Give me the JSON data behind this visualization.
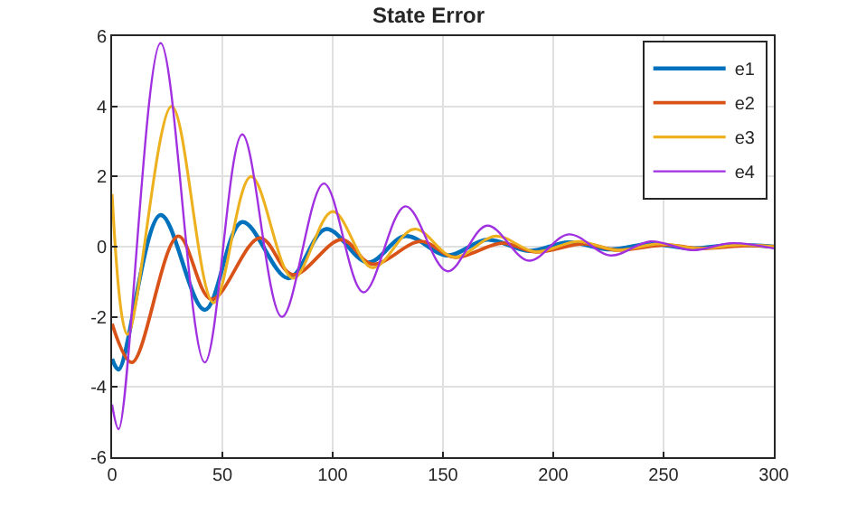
{
  "chart_data": {
    "type": "line",
    "title": "State Error",
    "xlim": [
      0,
      300
    ],
    "ylim": [
      -6,
      6
    ],
    "xticks": [
      0,
      50,
      100,
      150,
      200,
      250,
      300
    ],
    "yticks": [
      -6,
      -4,
      -2,
      0,
      2,
      4,
      6
    ],
    "grid": true,
    "legend": "top right",
    "series": [
      {
        "name": "e1",
        "color": "#0072bd",
        "x": [
          0,
          3,
          22,
          42,
          59,
          80,
          97,
          116,
          133,
          152,
          170,
          189,
          207,
          226,
          244,
          263,
          281,
          300
        ],
        "values": [
          -3.2,
          -3.5,
          0.9,
          -1.8,
          0.7,
          -0.9,
          0.5,
          -0.45,
          0.3,
          -0.25,
          0.2,
          -0.12,
          0.12,
          -0.08,
          0.08,
          -0.05,
          0.05,
          0
        ]
      },
      {
        "name": "e2",
        "color": "#d95319",
        "x": [
          0,
          9,
          30,
          45,
          67,
          82,
          104,
          118,
          140,
          155,
          177,
          192,
          214,
          229,
          251,
          266,
          288,
          300
        ],
        "values": [
          -2.2,
          -3.3,
          0.3,
          -1.5,
          0.25,
          -0.8,
          0.2,
          -0.5,
          0.15,
          -0.3,
          0.1,
          -0.15,
          0.08,
          -0.1,
          0.05,
          -0.05,
          0.03,
          0
        ]
      },
      {
        "name": "e3",
        "color": "#edb120",
        "x": [
          0,
          7,
          27,
          46,
          63,
          82,
          100,
          118,
          137,
          155,
          174,
          192,
          211,
          229,
          248,
          266,
          285,
          300
        ],
        "values": [
          1.5,
          -2.5,
          4.0,
          -1.6,
          2.0,
          -0.9,
          1.0,
          -0.6,
          0.5,
          -0.3,
          0.3,
          -0.15,
          0.15,
          -0.1,
          0.08,
          -0.05,
          0.05,
          0
        ]
      },
      {
        "name": "e4",
        "color": "#a030e0",
        "x": [
          0,
          3,
          22,
          42,
          59,
          77,
          96,
          114,
          133,
          152,
          170,
          189,
          207,
          226,
          244,
          263,
          281,
          300
        ],
        "values": [
          -4.5,
          -5.2,
          5.8,
          -3.3,
          3.2,
          -2.0,
          1.8,
          -1.3,
          1.15,
          -0.7,
          0.6,
          -0.4,
          0.35,
          -0.25,
          0.15,
          -0.1,
          0.1,
          -0.05
        ]
      }
    ]
  }
}
